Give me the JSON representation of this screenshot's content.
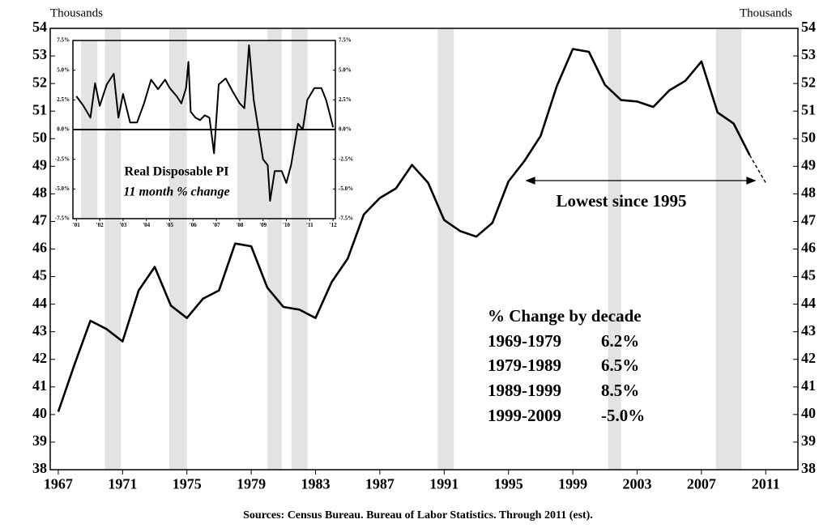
{
  "chart_data": [
    {
      "type": "line",
      "y_unit_label": "Thousands",
      "x": [
        1967,
        1968,
        1969,
        1970,
        1971,
        1972,
        1973,
        1974,
        1975,
        1976,
        1977,
        1978,
        1979,
        1980,
        1981,
        1982,
        1983,
        1984,
        1985,
        1986,
        1987,
        1988,
        1989,
        1990,
        1991,
        1992,
        1993,
        1994,
        1995,
        1996,
        1997,
        1998,
        1999,
        2000,
        2001,
        2002,
        2003,
        2004,
        2005,
        2006,
        2007,
        2008,
        2009,
        2010,
        2011
      ],
      "series": [
        {
          "color": "#000000",
          "dashed": false,
          "values": [
            40.1,
            41.8,
            43.4,
            43.1,
            42.65,
            44.5,
            45.35,
            43.95,
            43.5,
            44.2,
            44.5,
            46.2,
            46.1,
            44.6,
            43.9,
            43.8,
            43.5,
            44.8,
            45.65,
            47.25,
            47.85,
            48.2,
            49.05,
            48.4,
            47.05,
            46.65,
            46.45,
            46.95,
            48.45,
            49.2,
            50.1,
            51.9,
            53.25,
            53.15,
            51.95,
            51.4,
            51.35,
            51.15,
            51.75,
            52.1,
            52.8,
            50.95,
            50.55,
            49.4,
            null
          ]
        },
        {
          "color": "#000000",
          "dashed": true,
          "values": [
            null,
            null,
            null,
            null,
            null,
            null,
            null,
            null,
            null,
            null,
            null,
            null,
            null,
            null,
            null,
            null,
            null,
            null,
            null,
            null,
            null,
            null,
            null,
            null,
            null,
            null,
            null,
            null,
            null,
            null,
            null,
            null,
            null,
            null,
            null,
            null,
            null,
            null,
            null,
            null,
            null,
            null,
            null,
            49.4,
            48.4
          ]
        }
      ],
      "shaded_ranges": [
        [
          1969.9,
          1970.9
        ],
        [
          1973.9,
          1975.0
        ],
        [
          1980.0,
          1980.9
        ],
        [
          1981.5,
          1982.5
        ],
        [
          1990.6,
          1991.6
        ],
        [
          2001.2,
          2002.0
        ],
        [
          2007.9,
          2009.5
        ]
      ],
      "shade_color": "#e3e3e3",
      "xlim": [
        1966.5,
        2013
      ],
      "xticks": [
        1967,
        1971,
        1975,
        1979,
        1983,
        1987,
        1991,
        1995,
        1999,
        2003,
        2007,
        2011
      ],
      "ylim": [
        38,
        54
      ],
      "yticks": [
        38,
        39,
        40,
        41,
        42,
        43,
        44,
        45,
        46,
        47,
        48,
        49,
        50,
        51,
        52,
        53,
        54
      ],
      "annotation": "Lowest since 1995",
      "decade_table": {
        "title": "% Change by decade",
        "rows": [
          [
            "1969-1979",
            "6.2%"
          ],
          [
            "1979-1989",
            "6.5%"
          ],
          [
            "1989-1999",
            "8.5%"
          ],
          [
            "1999-2009",
            "-5.0%"
          ]
        ]
      },
      "source": "Sources: Census Bureau. Bureau of Labor Statistics. Through 2011 (est)."
    },
    {
      "type": "line",
      "title": "Real Disposable PI",
      "subtitle": "11 month % change",
      "x": [
        2001.0,
        2001.3,
        2001.6,
        2001.8,
        2002.0,
        2002.3,
        2002.6,
        2002.8,
        2003.0,
        2003.3,
        2003.6,
        2003.9,
        2004.2,
        2004.5,
        2004.8,
        2005.0,
        2005.3,
        2005.5,
        2005.7,
        2005.8,
        2005.9,
        2006.1,
        2006.3,
        2006.5,
        2006.7,
        2006.8,
        2006.9,
        2007.1,
        2007.4,
        2007.7,
        2008.0,
        2008.2,
        2008.4,
        2008.6,
        2008.8,
        2009.0,
        2009.2,
        2009.3,
        2009.5,
        2009.8,
        2010.0,
        2010.2,
        2010.5,
        2010.7,
        2010.9,
        2011.2,
        2011.5,
        2011.7,
        2011.9,
        2012.0
      ],
      "series": [
        {
          "color": "#000000",
          "dashed": false,
          "values": [
            2.8,
            2.0,
            1.0,
            3.9,
            2.0,
            3.8,
            4.7,
            1.0,
            3.0,
            0.6,
            0.6,
            2.2,
            4.2,
            3.4,
            4.2,
            3.5,
            2.8,
            2.2,
            3.5,
            5.7,
            1.5,
            1.0,
            0.8,
            1.2,
            1.0,
            -0.5,
            -2.0,
            3.8,
            4.3,
            3.2,
            2.2,
            1.8,
            7.1,
            2.5,
            0.0,
            -2.5,
            -3.0,
            -6.0,
            -3.5,
            -3.5,
            -4.5,
            -3.0,
            0.5,
            0.0,
            2.5,
            3.5,
            3.5,
            2.5,
            1.0,
            0.2
          ]
        }
      ],
      "shaded_ranges": [
        [
          2001.2,
          2001.9
        ],
        [
          2007.9,
          2009.5
        ]
      ],
      "shade_color": "#e3e3e3",
      "xlim": [
        2000.85,
        2012.1
      ],
      "xticks": [
        {
          "value": 2001,
          "label": "'01"
        },
        {
          "value": 2002,
          "label": "'02"
        },
        {
          "value": 2003,
          "label": "'03"
        },
        {
          "value": 2004,
          "label": "'04"
        },
        {
          "value": 2005,
          "label": "'05"
        },
        {
          "value": 2006,
          "label": "'06"
        },
        {
          "value": 2007,
          "label": "'07"
        },
        {
          "value": 2008,
          "label": "'08"
        },
        {
          "value": 2009,
          "label": "'09"
        },
        {
          "value": 2010,
          "label": "'10"
        },
        {
          "value": 2011,
          "label": "'11"
        },
        {
          "value": 2012,
          "label": "'12"
        }
      ],
      "ylim": [
        -7.5,
        7.5
      ],
      "yticks": [
        {
          "value": -7.5,
          "label": "-7.5%"
        },
        {
          "value": -5,
          "label": "-5.0%"
        },
        {
          "value": -2.5,
          "label": "-2.5%"
        },
        {
          "value": 0,
          "label": "0.0%"
        },
        {
          "value": 2.5,
          "label": "2.5%"
        },
        {
          "value": 5,
          "label": "5.0%"
        },
        {
          "value": 7.5,
          "label": "7.5%"
        }
      ]
    }
  ]
}
